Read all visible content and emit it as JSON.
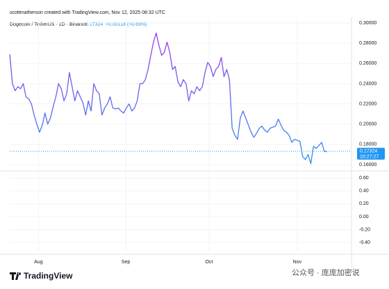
{
  "header": "scottmatherson created with TradingView.com, Nov 12, 2025 08:32 UTC",
  "legend": {
    "symbol": "Dogecoin / TetherUS · 1D · Binance",
    "change": "+0.00118 (+0.69%)"
  },
  "last_price": 0.17324,
  "countdown": "10:27:27",
  "brand": "TradingView",
  "watermark": "公众号 · 庞庞加密说",
  "chart_data": [
    {
      "type": "line",
      "gradient": [
        "#b22ee6",
        "#2196f3"
      ],
      "values": [
        0.269,
        0.24,
        0.233,
        0.237,
        0.235,
        0.24,
        0.227,
        0.225,
        0.22,
        0.209,
        0.2,
        0.192,
        0.199,
        0.211,
        0.2,
        0.206,
        0.217,
        0.227,
        0.24,
        0.235,
        0.223,
        0.23,
        0.251,
        0.237,
        0.223,
        0.233,
        0.227,
        0.221,
        0.209,
        0.223,
        0.213,
        0.24,
        0.233,
        0.23,
        0.209,
        0.216,
        0.22,
        0.227,
        0.216,
        0.215,
        0.216,
        0.213,
        0.211,
        0.216,
        0.22,
        0.213,
        0.216,
        0.223,
        0.24,
        0.24,
        0.244,
        0.254,
        0.268,
        0.281,
        0.29,
        0.278,
        0.268,
        0.271,
        0.281,
        0.271,
        0.254,
        0.257,
        0.242,
        0.237,
        0.244,
        0.24,
        0.223,
        0.233,
        0.23,
        0.237,
        0.233,
        0.237,
        0.251,
        0.261,
        0.257,
        0.247,
        0.254,
        0.257,
        0.266,
        0.247,
        0.254,
        0.244,
        0.196,
        0.189,
        0.185,
        0.206,
        0.213,
        0.206,
        0.199,
        0.192,
        0.187,
        0.191,
        0.196,
        0.198,
        0.194,
        0.192,
        0.196,
        0.197,
        0.198,
        0.205,
        0.199,
        0.194,
        0.192,
        0.189,
        0.182,
        0.185,
        0.184,
        0.183,
        0.168,
        0.165,
        0.17,
        0.161,
        0.178,
        0.176,
        0.179,
        0.182,
        0.173,
        0.173
      ],
      "xlim": [
        0,
        126
      ],
      "xticks": [
        {
          "value": 10.6,
          "label": "Aug"
        },
        {
          "value": 42.8,
          "label": "Sep"
        },
        {
          "value": 73.5,
          "label": "Oct"
        },
        {
          "value": 106,
          "label": "Nov"
        }
      ],
      "ylim": [
        0.1545,
        0.3055
      ],
      "yticks": [
        {
          "value": 0.3,
          "label": "0.30000"
        },
        {
          "value": 0.28,
          "label": "0.28000"
        },
        {
          "value": 0.26,
          "label": "0.26000"
        },
        {
          "value": 0.24,
          "label": "0.24000"
        },
        {
          "value": 0.22,
          "label": "0.22000"
        },
        {
          "value": 0.2,
          "label": "0.20000"
        },
        {
          "value": 0.18,
          "label": "0.18000"
        },
        {
          "value": 0.16,
          "label": "0.16000"
        }
      ],
      "grid": true
    },
    {
      "type": "pane",
      "ylim": [
        -0.54,
        0.7
      ],
      "yticks": [
        {
          "value": 0.6,
          "label": "0.60"
        },
        {
          "value": 0.4,
          "label": "0.40"
        },
        {
          "value": 0.2,
          "label": "0.20"
        },
        {
          "value": 0,
          "label": "0.00"
        },
        {
          "value": -0.2,
          "label": "-0.20"
        },
        {
          "value": -0.4,
          "label": "-0.40"
        }
      ],
      "grid": true
    }
  ]
}
